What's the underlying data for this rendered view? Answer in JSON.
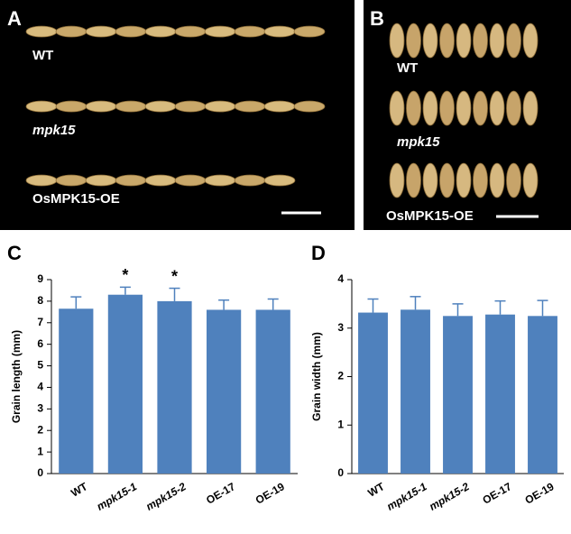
{
  "panels": {
    "a": {
      "label": "A",
      "rows": [
        "WT",
        "mpk15",
        "OsMPK15-OE"
      ]
    },
    "b": {
      "label": "B",
      "rows": [
        "WT",
        "mpk15",
        "OsMPK15-OE"
      ]
    }
  },
  "chart_data": [
    {
      "type": "bar",
      "panel_label": "C",
      "y_label": "Grain length (mm)",
      "categories": [
        "WT",
        "mpk15-1",
        "mpk15-2",
        "OE-17",
        "OE-19"
      ],
      "values": [
        7.65,
        8.3,
        8.0,
        7.6,
        7.6
      ],
      "errors": [
        0.55,
        0.35,
        0.6,
        0.45,
        0.5
      ],
      "annotations": [
        null,
        "*",
        "*",
        null,
        null
      ],
      "color": "#4f81bd",
      "ylim": [
        0,
        9
      ],
      "yticks": [
        0,
        1,
        2,
        3,
        4,
        5,
        6,
        7,
        8,
        9
      ]
    },
    {
      "type": "bar",
      "panel_label": "D",
      "y_label": "Grain width (mm)",
      "categories": [
        "WT",
        "mpk15-1",
        "mpk15-2",
        "OE-17",
        "OE-19"
      ],
      "values": [
        3.32,
        3.38,
        3.25,
        3.28,
        3.25
      ],
      "errors": [
        0.28,
        0.27,
        0.25,
        0.28,
        0.32
      ],
      "annotations": [
        null,
        null,
        null,
        null,
        null
      ],
      "color": "#4f81bd",
      "ylim": [
        0,
        4
      ],
      "yticks": [
        0,
        1,
        2,
        3,
        4
      ]
    }
  ]
}
